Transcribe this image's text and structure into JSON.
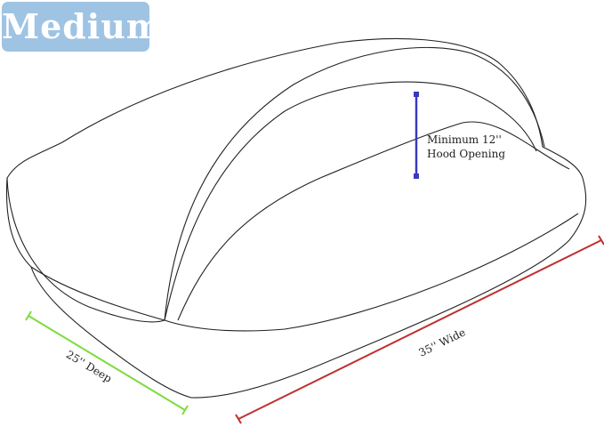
{
  "size_badge": {
    "label": "Medium",
    "color": "#9fc3e3"
  },
  "dimensions": {
    "hood": {
      "line1": "Minimum 12''",
      "line2": "Hood Opening",
      "color": "#3a3ac0"
    },
    "depth": {
      "label": "25'' Deep",
      "color": "#7ddc3c"
    },
    "width": {
      "label": "35'' Wide",
      "color": "#c03030"
    }
  }
}
